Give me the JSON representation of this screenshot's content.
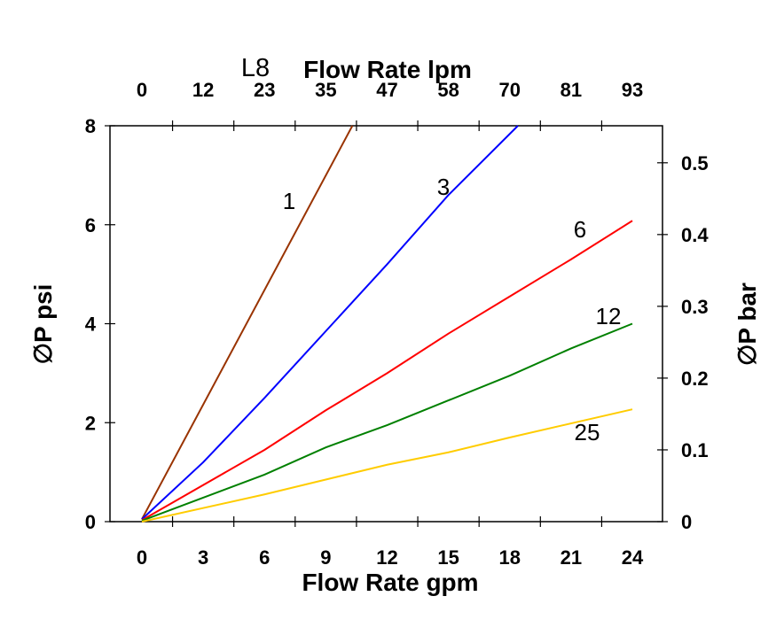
{
  "chart_data": {
    "type": "line",
    "title": "L8",
    "xlabel": "Flow Rate gpm",
    "x2label": "Flow Rate lpm",
    "ylabel": "∅P psi",
    "y2label": "∅P bar",
    "xlim": [
      0,
      24
    ],
    "ylim": [
      0,
      8
    ],
    "xticks": [
      "0",
      "3",
      "6",
      "9",
      "12",
      "15",
      "18",
      "21",
      "24"
    ],
    "x2ticks": [
      "0",
      "12",
      "23",
      "35",
      "47",
      "58",
      "70",
      "81",
      "93"
    ],
    "yticks": [
      "0",
      "2",
      "4",
      "6",
      "8"
    ],
    "y2ticks": [
      "0",
      "0.1",
      "0.2",
      "0.3",
      "0.4",
      "0.5"
    ],
    "grid": false,
    "series": [
      {
        "name": "1",
        "color": "#993300",
        "x": [
          0,
          10.3
        ],
        "y": [
          0.05,
          8
        ]
      },
      {
        "name": "3",
        "color": "#0000ff",
        "x": [
          0,
          3,
          6,
          9,
          12,
          15,
          18.4
        ],
        "y": [
          0.05,
          1.2,
          2.5,
          3.85,
          5.2,
          6.6,
          8
        ]
      },
      {
        "name": "6",
        "color": "#ff0000",
        "x": [
          0,
          6,
          9,
          12,
          15,
          18,
          21,
          24
        ],
        "y": [
          0.03,
          1.45,
          2.25,
          3.0,
          3.8,
          4.55,
          5.3,
          6.08
        ]
      },
      {
        "name": "12",
        "color": "#008000",
        "x": [
          0,
          6,
          9,
          12,
          15,
          18,
          21,
          24
        ],
        "y": [
          0.02,
          0.95,
          1.5,
          1.95,
          2.45,
          2.95,
          3.5,
          4.0
        ]
      },
      {
        "name": "25",
        "color": "#ffcc00",
        "x": [
          0,
          6,
          12,
          15,
          18,
          24
        ],
        "y": [
          0,
          0.55,
          1.15,
          1.4,
          1.7,
          2.27
        ]
      }
    ]
  }
}
